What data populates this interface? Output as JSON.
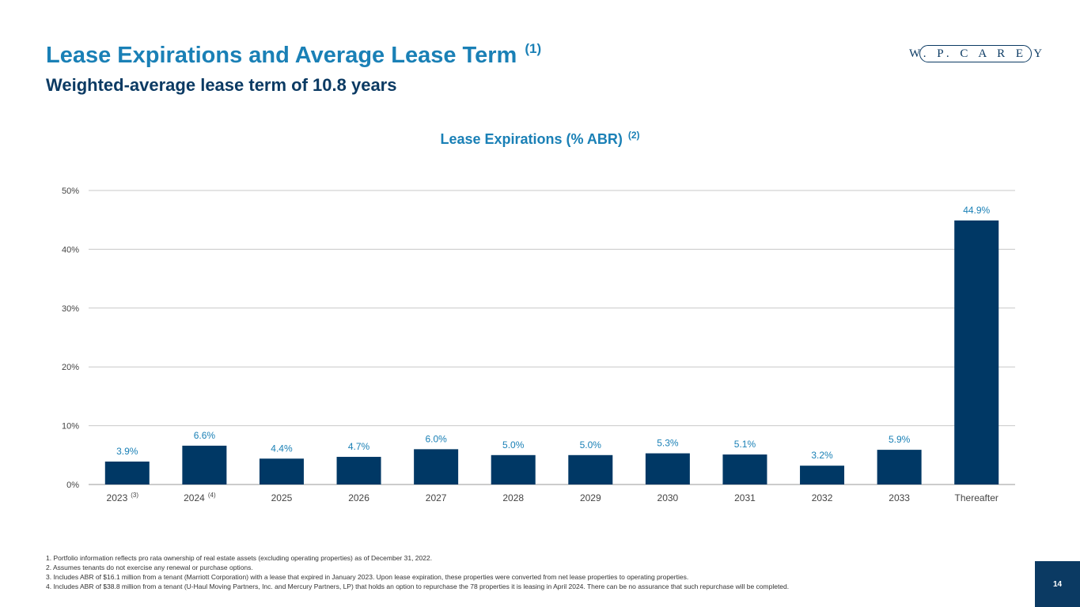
{
  "header": {
    "title": "Lease Expirations and Average Lease Term",
    "title_note": "(1)",
    "subtitle": "Weighted-average lease term of 10.8 years",
    "logo_text": "W. P. C A R E Y"
  },
  "chart_data": {
    "type": "bar",
    "title": "Lease Expirations (% ABR)",
    "title_note": "(2)",
    "categories": [
      "2023",
      "2024",
      "2025",
      "2026",
      "2027",
      "2028",
      "2029",
      "2030",
      "2031",
      "2032",
      "2033",
      "Thereafter"
    ],
    "category_notes": [
      "(3)",
      "(4)",
      "",
      "",
      "",
      "",
      "",
      "",
      "",
      "",
      "",
      ""
    ],
    "values": [
      3.9,
      6.6,
      4.4,
      4.7,
      6.0,
      5.0,
      5.0,
      5.3,
      5.1,
      3.2,
      5.9,
      44.9
    ],
    "value_labels": [
      "3.9%",
      "6.6%",
      "4.4%",
      "4.7%",
      "6.0%",
      "5.0%",
      "5.0%",
      "5.3%",
      "5.1%",
      "3.2%",
      "5.9%",
      "44.9%"
    ],
    "yticks": [
      0,
      10,
      20,
      30,
      40,
      50
    ],
    "ytick_labels": [
      "0%",
      "10%",
      "20%",
      "30%",
      "40%",
      "50%"
    ],
    "ylim": [
      0,
      50
    ],
    "grid": true,
    "legend": "none",
    "bar_color": "#003865",
    "label_color": "#1a80b6"
  },
  "footnotes": [
    "1.  Portfolio information reflects pro rata ownership of real estate assets (excluding operating properties) as of December 31, 2022.",
    "2.  Assumes tenants do not exercise any renewal or purchase options.",
    "3.  Includes ABR of $16.1 million from a tenant (Marriott Corporation) with a lease that expired in January 2023. Upon lease expiration, these properties were converted from net lease properties to operating properties.",
    "4.  Includes ABR of $38.8 million from a tenant (U-Haul Moving Partners, Inc. and Mercury Partners, LP) that holds an option to repurchase the 78 properties it is leasing in April 2024. There can be no assurance that such repurchase will be completed."
  ],
  "page_number": "14"
}
